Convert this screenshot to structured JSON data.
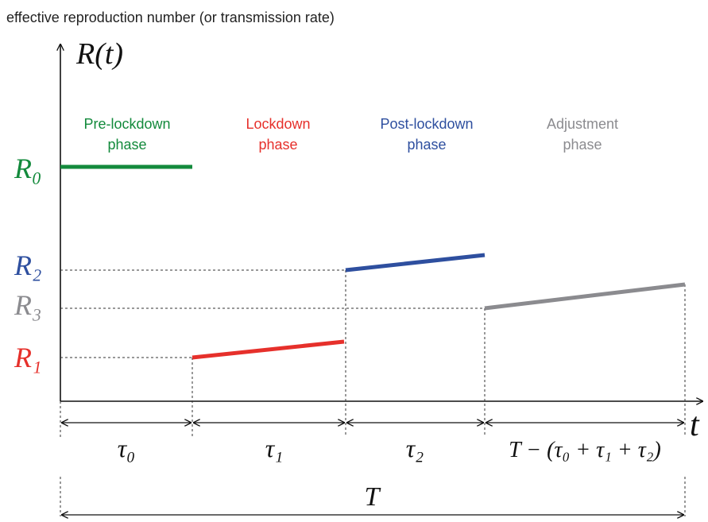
{
  "title": "effective reproduction number (or transmission rate)",
  "y_axis_label": "R(t)",
  "x_axis_label": "t",
  "levels": {
    "r0": "R₀",
    "r1": "R₁",
    "r2": "R₂",
    "r3": "R₃"
  },
  "phases": [
    {
      "lines": [
        "Pre-lockdown",
        "phase"
      ]
    },
    {
      "lines": [
        "Lockdown",
        "phase"
      ]
    },
    {
      "lines": [
        "Post-lockdown",
        "phase"
      ]
    },
    {
      "lines": [
        "Adjustment",
        "phase"
      ]
    }
  ],
  "durations": [
    "τ₀",
    "τ₁",
    "τ₂",
    "T − (τ₀ + τ₁ + τ₂)"
  ],
  "total": "T"
}
